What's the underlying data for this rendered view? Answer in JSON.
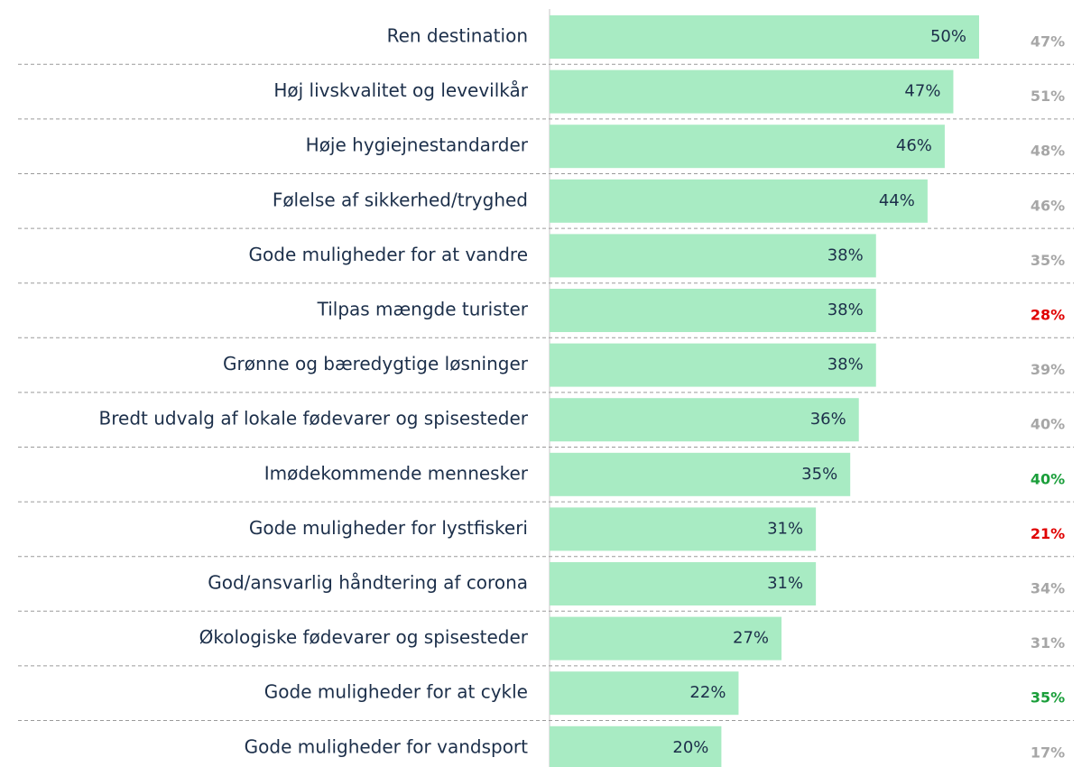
{
  "chart_data": {
    "type": "bar",
    "orientation": "horizontal",
    "categories": [
      "Ren destination",
      "Høj livskvalitet og levevilkår",
      "Høje hygiejnestandarder",
      "Følelse af sikkerhed/tryghed",
      "Gode muligheder for at vandre",
      "Tilpas mængde turister",
      "Grønne og bæredygtige løsninger",
      "Bredt udvalg af lokale fødevarer og spisesteder",
      "Imødekommende mennesker",
      "Gode muligheder for lystfiskeri",
      "God/ansvarlig håndtering af corona",
      "Økologiske fødevarer og spisesteder",
      "Gode muligheder for at cykle",
      "Gode muligheder for vandsport"
    ],
    "values": [
      50,
      47,
      46,
      44,
      38,
      38,
      38,
      36,
      35,
      31,
      31,
      27,
      22,
      20
    ],
    "value_labels": [
      "50%",
      "47%",
      "46%",
      "44%",
      "38%",
      "38%",
      "38%",
      "36%",
      "35%",
      "31%",
      "31%",
      "27%",
      "22%",
      "20%"
    ],
    "color": "#a8ebc3",
    "xlim": [
      0,
      50
    ],
    "comparison": {
      "values": [
        47,
        51,
        48,
        46,
        35,
        28,
        39,
        40,
        40,
        21,
        34,
        31,
        35,
        17
      ],
      "value_labels": [
        "47%",
        "51%",
        "48%",
        "46%",
        "35%",
        "28%",
        "39%",
        "40%",
        "40%",
        "21%",
        "34%",
        "31%",
        "35%",
        "17%"
      ],
      "colors": [
        "#a6a6a6",
        "#a6a6a6",
        "#a6a6a6",
        "#a6a6a6",
        "#a6a6a6",
        "#e00000",
        "#a6a6a6",
        "#a6a6a6",
        "#1a9e3a",
        "#e00000",
        "#a6a6a6",
        "#a6a6a6",
        "#1a9e3a",
        "#a6a6a6"
      ]
    }
  }
}
